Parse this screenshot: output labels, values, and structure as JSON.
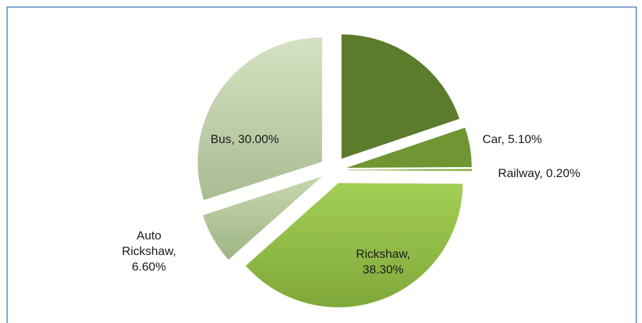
{
  "chart_data": {
    "type": "pie",
    "values": [
      19.8,
      5.1,
      0.2,
      38.3,
      6.6,
      30.0
    ],
    "value_labels": [
      null,
      "Car, 5.10%",
      "Railway, 0.20%",
      "Rickshaw, 38.30%",
      "Auto Rickshaw, 6.60%",
      "Bus, 30.00%"
    ],
    "colors": [
      "#5b7c2b",
      "#6f9632",
      "#7fa83a",
      "#98c24a",
      "#b3c49a",
      "#c7d5b2"
    ]
  }
}
